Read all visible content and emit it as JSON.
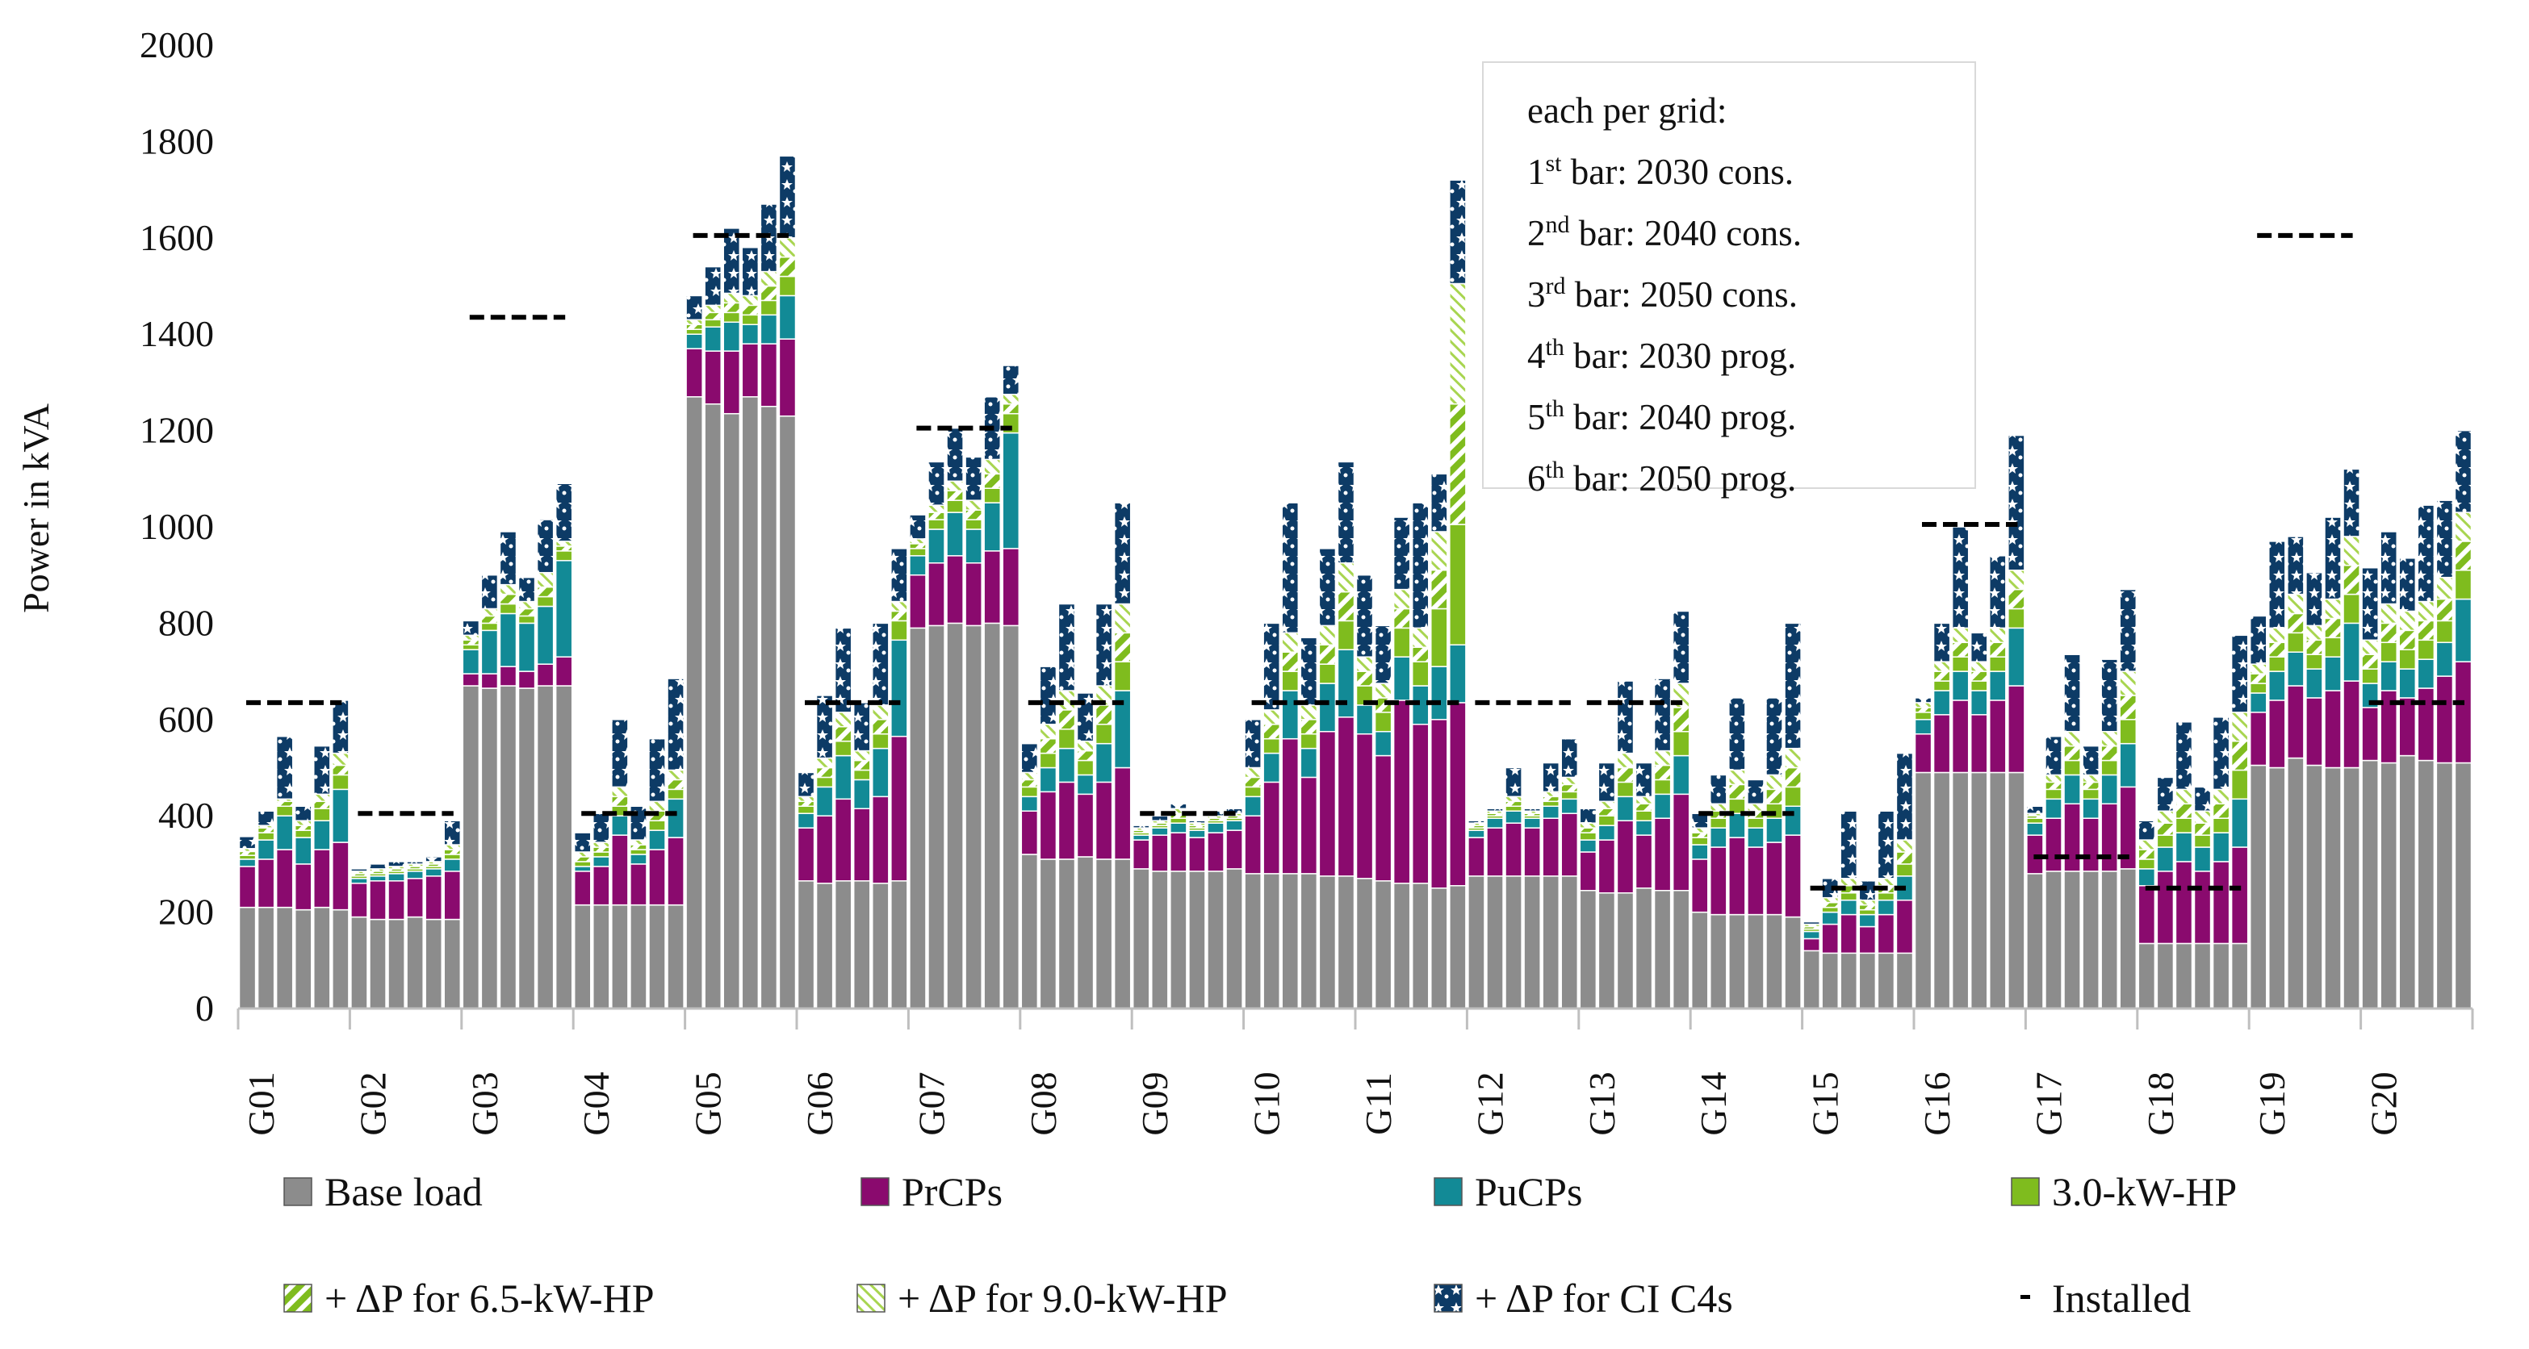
{
  "chart_data": {
    "type": "bar",
    "stacked": true,
    "ylabel": "Power in kVA",
    "ylim": [
      0,
      2000
    ],
    "yticks": [
      0,
      200,
      400,
      600,
      800,
      1000,
      1200,
      1400,
      1600,
      1800,
      2000
    ],
    "grids": [
      "G01",
      "G02",
      "G03",
      "G04",
      "G05",
      "G06",
      "G07",
      "G08",
      "G09",
      "G10",
      "G11",
      "G12",
      "G13",
      "G14",
      "G15",
      "G16",
      "G17",
      "G18",
      "G19",
      "G20"
    ],
    "bar_order_note": [
      "1st bar: 2030 cons.",
      "2nd bar: 2040 cons.",
      "3rd bar: 2050 cons.",
      "4th bar: 2030 prog.",
      "5th bar: 2040 prog.",
      "6th bar: 2050 prog."
    ],
    "series_names": [
      "Base load",
      "PrCPs",
      "PuCPs",
      "3.0-kW-HP",
      "+ ΔP for 6.5-kW-HP",
      "+ ΔP for 9.0-kW-HP",
      "+ ΔP for CI C4s"
    ],
    "series_colors": [
      "#8c8c8c",
      "#8a0a6e",
      "#128a96",
      "#7fbc1e",
      "#7fbc1e",
      "#b6dd60",
      "#0d3b66"
    ],
    "bars": [
      [
        [
          210,
          85,
          15,
          8,
          8,
          6,
          25
        ],
        [
          210,
          100,
          40,
          15,
          10,
          5,
          30
        ],
        [
          210,
          120,
          70,
          20,
          10,
          5,
          130
        ],
        [
          205,
          95,
          55,
          15,
          10,
          10,
          30
        ],
        [
          210,
          120,
          60,
          25,
          15,
          15,
          100
        ],
        [
          205,
          140,
          110,
          30,
          20,
          25,
          110
        ]
      ],
      [
        [
          190,
          70,
          10,
          5,
          5,
          5,
          5
        ],
        [
          185,
          80,
          10,
          5,
          5,
          5,
          10
        ],
        [
          185,
          80,
          15,
          5,
          5,
          5,
          10
        ],
        [
          190,
          80,
          15,
          5,
          5,
          5,
          5
        ],
        [
          185,
          90,
          15,
          5,
          5,
          5,
          10
        ],
        [
          185,
          100,
          25,
          10,
          10,
          10,
          50
        ]
      ],
      [
        [
          670,
          25,
          50,
          10,
          10,
          10,
          30
        ],
        [
          665,
          30,
          90,
          15,
          15,
          15,
          70
        ],
        [
          670,
          40,
          110,
          20,
          20,
          20,
          110
        ],
        [
          665,
          35,
          100,
          15,
          15,
          15,
          50
        ],
        [
          670,
          45,
          120,
          20,
          20,
          30,
          110
        ],
        [
          670,
          60,
          200,
          20,
          10,
          10,
          120
        ]
      ],
      [
        [
          215,
          70,
          10,
          10,
          10,
          10,
          40
        ],
        [
          215,
          80,
          20,
          10,
          10,
          10,
          60
        ],
        [
          215,
          145,
          40,
          20,
          20,
          20,
          140
        ],
        [
          215,
          85,
          20,
          10,
          10,
          10,
          70
        ],
        [
          215,
          115,
          40,
          20,
          20,
          20,
          130
        ],
        [
          215,
          140,
          80,
          20,
          20,
          20,
          190
        ]
      ],
      [
        [
          1270,
          100,
          30,
          10,
          10,
          10,
          50
        ],
        [
          1255,
          110,
          50,
          15,
          15,
          15,
          80
        ],
        [
          1235,
          130,
          60,
          20,
          20,
          20,
          135
        ],
        [
          1270,
          110,
          40,
          20,
          20,
          20,
          100
        ],
        [
          1250,
          130,
          60,
          30,
          30,
          30,
          140
        ],
        [
          1230,
          160,
          90,
          40,
          40,
          40,
          170
        ]
      ],
      [
        [
          265,
          110,
          30,
          15,
          10,
          10,
          50
        ],
        [
          260,
          140,
          60,
          20,
          20,
          20,
          130
        ],
        [
          265,
          170,
          90,
          30,
          30,
          30,
          175
        ],
        [
          265,
          150,
          60,
          20,
          20,
          20,
          100
        ],
        [
          260,
          180,
          100,
          30,
          30,
          30,
          170
        ],
        [
          265,
          300,
          200,
          40,
          20,
          20,
          110
        ]
      ],
      [
        [
          790,
          110,
          40,
          15,
          10,
          10,
          50
        ],
        [
          795,
          130,
          70,
          20,
          15,
          15,
          90
        ],
        [
          800,
          140,
          90,
          25,
          20,
          20,
          110
        ],
        [
          795,
          130,
          70,
          20,
          20,
          20,
          90
        ],
        [
          800,
          150,
          100,
          30,
          30,
          30,
          130
        ],
        [
          795,
          160,
          240,
          40,
          20,
          20,
          60
        ]
      ],
      [
        [
          320,
          90,
          30,
          20,
          15,
          15,
          60
        ],
        [
          310,
          140,
          50,
          30,
          30,
          30,
          120
        ],
        [
          310,
          160,
          70,
          40,
          40,
          40,
          180
        ],
        [
          315,
          130,
          40,
          30,
          20,
          20,
          100
        ],
        [
          310,
          160,
          80,
          40,
          40,
          40,
          170
        ],
        [
          310,
          190,
          160,
          60,
          60,
          60,
          210
        ]
      ],
      [
        [
          290,
          60,
          10,
          5,
          5,
          5,
          5
        ],
        [
          285,
          75,
          15,
          5,
          5,
          5,
          10
        ],
        [
          285,
          80,
          20,
          10,
          10,
          10,
          10
        ],
        [
          285,
          70,
          15,
          5,
          5,
          5,
          5
        ],
        [
          285,
          80,
          20,
          5,
          5,
          5,
          10
        ],
        [
          290,
          80,
          20,
          5,
          5,
          5,
          10
        ]
      ],
      [
        [
          280,
          120,
          40,
          20,
          20,
          20,
          100
        ],
        [
          280,
          190,
          60,
          30,
          30,
          30,
          180
        ],
        [
          280,
          280,
          100,
          40,
          40,
          40,
          270
        ],
        [
          280,
          200,
          60,
          30,
          30,
          30,
          140
        ],
        [
          275,
          300,
          100,
          40,
          40,
          40,
          160
        ],
        [
          275,
          330,
          140,
          60,
          60,
          60,
          210
        ]
      ],
      [
        [
          270,
          300,
          60,
          40,
          30,
          30,
          170
        ],
        [
          265,
          260,
          50,
          40,
          30,
          30,
          120
        ],
        [
          260,
          380,
          90,
          60,
          40,
          40,
          150
        ],
        [
          260,
          330,
          80,
          50,
          30,
          40,
          260
        ],
        [
          250,
          350,
          110,
          120,
          80,
          80,
          120
        ],
        [
          255,
          380,
          120,
          250,
          250,
          250,
          215
        ]
      ],
      [
        [
          275,
          80,
          15,
          5,
          5,
          5,
          5
        ],
        [
          275,
          100,
          20,
          5,
          5,
          5,
          5
        ],
        [
          275,
          110,
          25,
          10,
          10,
          10,
          60
        ],
        [
          275,
          100,
          20,
          5,
          5,
          5,
          5
        ],
        [
          275,
          120,
          25,
          10,
          10,
          10,
          60
        ],
        [
          275,
          130,
          30,
          15,
          15,
          15,
          80
        ]
      ],
      [
        [
          245,
          80,
          25,
          15,
          10,
          10,
          30
        ],
        [
          240,
          110,
          30,
          20,
          15,
          15,
          80
        ],
        [
          240,
          150,
          50,
          30,
          30,
          30,
          150
        ],
        [
          250,
          110,
          30,
          20,
          15,
          15,
          70
        ],
        [
          245,
          150,
          50,
          30,
          30,
          30,
          150
        ],
        [
          245,
          200,
          80,
          50,
          50,
          50,
          150
        ]
      ],
      [
        [
          200,
          110,
          30,
          15,
          10,
          10,
          30
        ],
        [
          195,
          140,
          40,
          20,
          15,
          15,
          60
        ],
        [
          195,
          160,
          50,
          30,
          30,
          30,
          150
        ],
        [
          195,
          140,
          40,
          20,
          15,
          15,
          50
        ],
        [
          195,
          150,
          50,
          30,
          30,
          30,
          160
        ],
        [
          190,
          170,
          60,
          40,
          40,
          40,
          260
        ]
      ],
      [
        [
          120,
          25,
          15,
          5,
          5,
          5,
          5
        ],
        [
          115,
          60,
          25,
          10,
          10,
          10,
          40
        ],
        [
          115,
          80,
          30,
          15,
          15,
          15,
          140
        ],
        [
          115,
          55,
          25,
          10,
          10,
          10,
          40
        ],
        [
          115,
          80,
          30,
          15,
          15,
          15,
          140
        ],
        [
          115,
          110,
          50,
          25,
          25,
          25,
          180
        ]
      ],
      [
        [
          490,
          80,
          30,
          15,
          10,
          10,
          10
        ],
        [
          490,
          120,
          50,
          20,
          20,
          20,
          80
        ],
        [
          490,
          150,
          60,
          30,
          30,
          30,
          210
        ],
        [
          490,
          120,
          50,
          20,
          20,
          20,
          60
        ],
        [
          490,
          150,
          60,
          30,
          30,
          30,
          150
        ],
        [
          490,
          180,
          120,
          40,
          40,
          40,
          280
        ]
      ],
      [
        [
          280,
          80,
          25,
          10,
          5,
          5,
          15
        ],
        [
          285,
          110,
          40,
          20,
          15,
          15,
          80
        ],
        [
          285,
          140,
          60,
          30,
          30,
          30,
          160
        ],
        [
          285,
          110,
          40,
          20,
          15,
          15,
          60
        ],
        [
          285,
          140,
          60,
          30,
          30,
          30,
          150
        ],
        [
          290,
          170,
          90,
          50,
          50,
          50,
          170
        ]
      ],
      [
        [
          135,
          120,
          35,
          20,
          20,
          20,
          40
        ],
        [
          135,
          150,
          50,
          25,
          25,
          25,
          70
        ],
        [
          135,
          170,
          60,
          30,
          30,
          30,
          140
        ],
        [
          135,
          150,
          50,
          25,
          25,
          25,
          50
        ],
        [
          135,
          170,
          60,
          30,
          30,
          30,
          150
        ],
        [
          135,
          200,
          100,
          60,
          60,
          60,
          160
        ]
      ],
      [
        [
          505,
          110,
          40,
          20,
          20,
          20,
          100
        ],
        [
          500,
          140,
          60,
          30,
          30,
          30,
          180
        ],
        [
          520,
          150,
          70,
          40,
          40,
          40,
          120
        ],
        [
          505,
          140,
          60,
          30,
          30,
          30,
          110
        ],
        [
          500,
          160,
          70,
          40,
          40,
          40,
          170
        ],
        [
          500,
          180,
          120,
          60,
          60,
          60,
          140
        ]
      ],
      [
        [
          515,
          110,
          50,
          30,
          30,
          30,
          150
        ],
        [
          510,
          150,
          60,
          40,
          40,
          40,
          150
        ],
        [
          525,
          120,
          60,
          40,
          40,
          40,
          110
        ],
        [
          515,
          150,
          60,
          40,
          40,
          40,
          200
        ],
        [
          510,
          180,
          70,
          45,
          45,
          45,
          160
        ],
        [
          510,
          210,
          130,
          60,
          60,
          60,
          170
        ]
      ]
    ],
    "installed": [
      635,
      405,
      1435,
      405,
      1605,
      635,
      1205,
      635,
      405,
      635,
      635,
      635,
      635,
      405,
      250,
      1005,
      315,
      250,
      1605,
      635
    ]
  },
  "info_box": {
    "heading": "each per grid:",
    "lines": [
      {
        "ord": "1",
        "sup": "st",
        "rest": " bar: 2030 cons."
      },
      {
        "ord": "2",
        "sup": "nd",
        "rest": " bar: 2040 cons."
      },
      {
        "ord": "3",
        "sup": "rd",
        "rest": " bar: 2050 cons."
      },
      {
        "ord": "4",
        "sup": "th",
        "rest": " bar: 2030 prog."
      },
      {
        "ord": "5",
        "sup": "th",
        "rest": " bar: 2040 prog."
      },
      {
        "ord": "6",
        "sup": "th",
        "rest": " bar: 2050 prog."
      }
    ]
  },
  "legend": {
    "items": [
      {
        "label": "Base load",
        "pattern": "solid-gray"
      },
      {
        "label": "PrCPs",
        "pattern": "solid-magenta"
      },
      {
        "label": "PuCPs",
        "pattern": "solid-teal"
      },
      {
        "label": "3.0-kW-HP",
        "pattern": "solid-green"
      },
      {
        "label": "+ ΔP  for 6.5-kW-HP",
        "pattern": "green-diagonal-stripes"
      },
      {
        "label": "+ ΔP  for 9.0-kW-HP",
        "pattern": "light-green-back-diagonal-stripes"
      },
      {
        "label": "+ ΔP  for CI C4s",
        "pattern": "navy-with-white-stars"
      },
      {
        "label": "Installed",
        "pattern": "dash"
      }
    ]
  }
}
